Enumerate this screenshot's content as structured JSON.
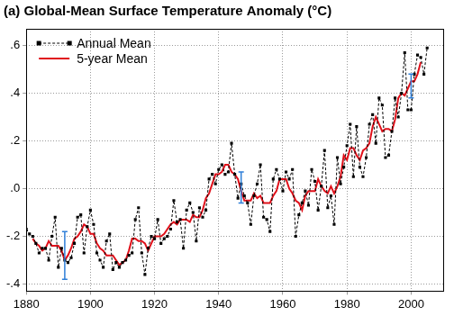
{
  "chart_data": {
    "type": "line",
    "title": "(a) Global-Mean Surface Temperature Anomaly (°C)",
    "x": [
      1880,
      1881,
      1882,
      1883,
      1884,
      1885,
      1886,
      1887,
      1888,
      1889,
      1890,
      1891,
      1892,
      1893,
      1894,
      1895,
      1896,
      1897,
      1898,
      1899,
      1900,
      1901,
      1902,
      1903,
      1904,
      1905,
      1906,
      1907,
      1908,
      1909,
      1910,
      1911,
      1912,
      1913,
      1914,
      1915,
      1916,
      1917,
      1918,
      1919,
      1920,
      1921,
      1922,
      1923,
      1924,
      1925,
      1926,
      1927,
      1928,
      1929,
      1930,
      1931,
      1932,
      1933,
      1934,
      1935,
      1936,
      1937,
      1938,
      1939,
      1940,
      1941,
      1942,
      1943,
      1944,
      1945,
      1946,
      1947,
      1948,
      1949,
      1950,
      1951,
      1952,
      1953,
      1954,
      1955,
      1956,
      1957,
      1958,
      1959,
      1960,
      1961,
      1962,
      1963,
      1964,
      1965,
      1966,
      1967,
      1968,
      1969,
      1970,
      1971,
      1972,
      1973,
      1974,
      1975,
      1976,
      1977,
      1978,
      1979,
      1980,
      1981,
      1982,
      1983,
      1984,
      1985,
      1986,
      1987,
      1988,
      1989,
      1990,
      1991,
      1992,
      1993,
      1994,
      1995,
      1996,
      1997,
      1998,
      1999,
      2000,
      2001,
      2002,
      2003,
      2004,
      2005
    ],
    "series": [
      {
        "name": "Annual Mean",
        "color": "#000000",
        "marker": "square",
        "line_style": "dashed",
        "values": [
          -0.17,
          -0.19,
          -0.2,
          -0.23,
          -0.27,
          -0.25,
          -0.25,
          -0.3,
          -0.2,
          -0.12,
          -0.33,
          -0.25,
          -0.3,
          -0.31,
          -0.29,
          -0.23,
          -0.12,
          -0.11,
          -0.27,
          -0.16,
          -0.09,
          -0.15,
          -0.27,
          -0.3,
          -0.33,
          -0.22,
          -0.19,
          -0.34,
          -0.31,
          -0.33,
          -0.31,
          -0.3,
          -0.28,
          -0.27,
          -0.13,
          -0.08,
          -0.27,
          -0.36,
          -0.25,
          -0.2,
          -0.21,
          -0.13,
          -0.23,
          -0.21,
          -0.2,
          -0.17,
          -0.05,
          -0.14,
          -0.13,
          -0.25,
          -0.09,
          -0.06,
          -0.1,
          -0.22,
          -0.08,
          -0.12,
          -0.09,
          0.04,
          0.06,
          0.02,
          0.08,
          0.1,
          0.06,
          0.07,
          0.19,
          0.06,
          -0.04,
          0.02,
          -0.03,
          -0.06,
          -0.15,
          -0.03,
          0.02,
          0.1,
          -0.12,
          -0.13,
          -0.18,
          0.04,
          0.08,
          0.04,
          -0.01,
          0.07,
          0.04,
          0.08,
          -0.2,
          -0.11,
          -0.06,
          -0.01,
          -0.07,
          0.08,
          0.03,
          -0.09,
          0.01,
          0.16,
          -0.08,
          -0.03,
          -0.15,
          0.13,
          0.02,
          0.09,
          0.18,
          0.27,
          0.05,
          0.26,
          0.09,
          0.05,
          0.13,
          0.27,
          0.31,
          0.19,
          0.38,
          0.35,
          0.13,
          0.14,
          0.24,
          0.38,
          0.3,
          0.4,
          0.57,
          0.33,
          0.33,
          0.48,
          0.56,
          0.55,
          0.48,
          0.59
        ]
      },
      {
        "name": "5-year Mean",
        "color": "#e0101a",
        "marker": "none",
        "line_style": "solid",
        "values": [
          null,
          null,
          -0.21,
          -0.23,
          -0.24,
          -0.26,
          -0.25,
          -0.22,
          -0.24,
          -0.24,
          -0.24,
          -0.26,
          -0.3,
          -0.28,
          -0.25,
          -0.21,
          -0.2,
          -0.18,
          -0.15,
          -0.16,
          -0.19,
          -0.19,
          -0.23,
          -0.25,
          -0.26,
          -0.28,
          -0.28,
          -0.28,
          -0.3,
          -0.32,
          -0.31,
          -0.3,
          -0.26,
          -0.21,
          -0.21,
          -0.22,
          -0.22,
          -0.23,
          -0.26,
          -0.23,
          -0.2,
          -0.2,
          -0.2,
          -0.19,
          -0.17,
          -0.15,
          -0.14,
          -0.15,
          -0.13,
          -0.13,
          -0.13,
          -0.14,
          -0.11,
          -0.12,
          -0.12,
          -0.09,
          -0.04,
          -0.02,
          0.02,
          0.06,
          0.06,
          0.07,
          0.1,
          0.1,
          0.07,
          0.06,
          0.04,
          -0.01,
          -0.05,
          -0.05,
          -0.05,
          -0.02,
          -0.04,
          -0.03,
          -0.06,
          -0.06,
          -0.06,
          -0.03,
          -0.01,
          0.04,
          0.04,
          0.04,
          0.0,
          -0.02,
          -0.05,
          -0.06,
          -0.09,
          -0.03,
          -0.01,
          -0.01,
          -0.01,
          0.04,
          0.01,
          -0.01,
          -0.02,
          0.01,
          -0.02,
          0.01,
          0.05,
          0.14,
          0.12,
          0.17,
          0.17,
          0.14,
          0.12,
          0.16,
          0.17,
          0.19,
          0.26,
          0.3,
          0.27,
          0.24,
          0.25,
          0.25,
          0.24,
          0.29,
          0.38,
          0.4,
          0.39,
          0.42,
          0.45,
          0.45,
          0.48,
          0.53,
          null,
          null
        ]
      }
    ],
    "error_bars": {
      "x": [
        1892,
        1947,
        2000
      ],
      "low": [
        -0.38,
        -0.06,
        0.38
      ],
      "high": [
        -0.18,
        0.07,
        0.48
      ]
    },
    "xlim": [
      1880,
      2010
    ],
    "xticks": [
      1880,
      1900,
      1920,
      1940,
      1960,
      1980,
      2000
    ],
    "ylim": [
      -0.43,
      0.67
    ],
    "yticks": [
      {
        "value": -0.4,
        "label": "-.4"
      },
      {
        "value": -0.2,
        "label": "-.2"
      },
      {
        "value": 0,
        "label": ".0"
      },
      {
        "value": 0.2,
        "label": ".2"
      },
      {
        "value": 0.4,
        "label": ".4"
      },
      {
        "value": 0.6,
        "label": ".6"
      }
    ],
    "grid": true,
    "legend": "upper left"
  }
}
